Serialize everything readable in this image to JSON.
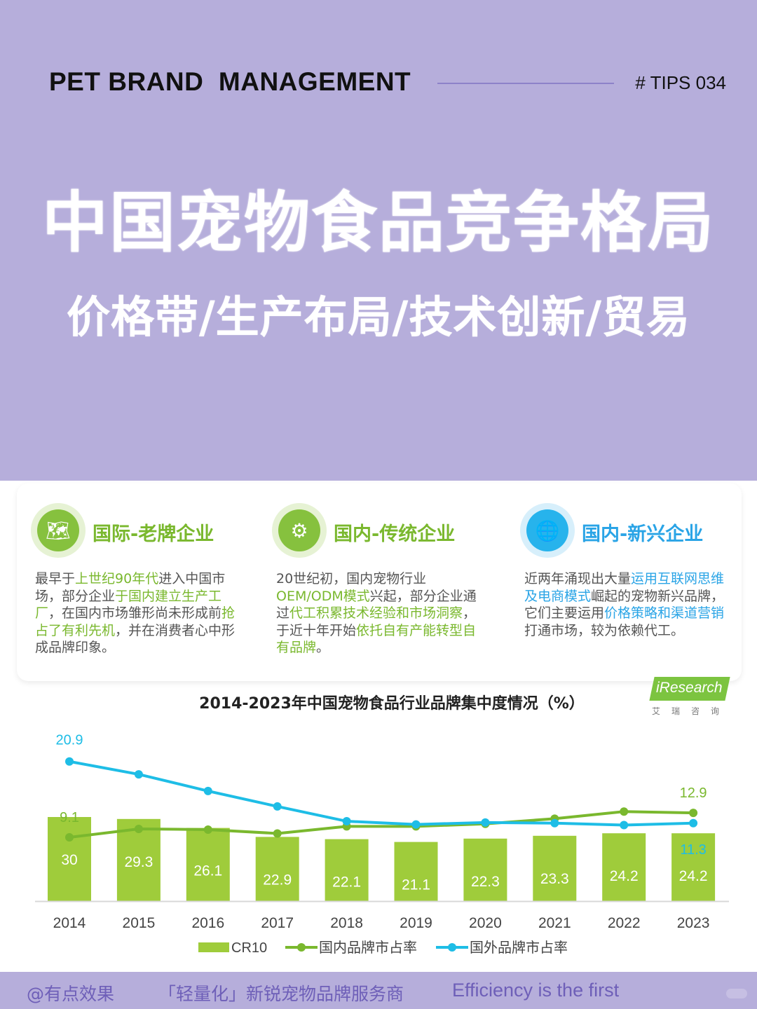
{
  "header": {
    "brand_line": "PET BRAND  MANAGEMENT",
    "tips": "# TIPS 034",
    "title": "中国宠物食品竞争格局",
    "subtitle": "价格带/生产布局/技术创新/贸易"
  },
  "categories": [
    {
      "icon": "world-map-icon",
      "heading": "国际-老牌企业",
      "color": "#7ab82e",
      "segments": [
        {
          "t": "最早于",
          "h": false
        },
        {
          "t": "上世纪90年代",
          "h": true
        },
        {
          "t": "进入中国市场，部分企业",
          "h": false
        },
        {
          "t": "于国内建立生产工厂",
          "h": true
        },
        {
          "t": "，在国内市场雏形尚未形成前",
          "h": false
        },
        {
          "t": "抢占了有利先机",
          "h": true
        },
        {
          "t": "，并在消费者心中形成品牌印象。",
          "h": false
        }
      ]
    },
    {
      "icon": "gear-icon",
      "heading": "国内-传统企业",
      "color": "#7ab82e",
      "segments": [
        {
          "t": "20世纪初，国内宠物行业",
          "h": false
        },
        {
          "t": "OEM/ODM模式",
          "h": true
        },
        {
          "t": "兴起，部分企业通过",
          "h": false
        },
        {
          "t": "代工积累技术经验和市场洞察",
          "h": true
        },
        {
          "t": "，于近十年开始",
          "h": false
        },
        {
          "t": "依托自有产能转型自有品牌",
          "h": true
        },
        {
          "t": "。",
          "h": false
        }
      ]
    },
    {
      "icon": "globe-icon",
      "heading": "国内-新兴企业",
      "color": "#2aa4e6",
      "segments": [
        {
          "t": "近两年涌现出大量",
          "h": false
        },
        {
          "t": "运用互联网思维及电商模式",
          "h": true
        },
        {
          "t": "崛起的宠物新兴品牌，它们主要运用",
          "h": false
        },
        {
          "t": "价格策略和渠道营销",
          "h": true
        },
        {
          "t": "打通市场，较为依赖代工。",
          "h": false
        }
      ]
    }
  ],
  "logo": {
    "name": "iResearch",
    "sub": "艾瑞咨询"
  },
  "chart_data": {
    "type": "bar",
    "title": "2014-2023年中国宠物食品行业品牌集中度情况（%）",
    "categories": [
      "2014",
      "2015",
      "2016",
      "2017",
      "2018",
      "2019",
      "2020",
      "2021",
      "2022",
      "2023"
    ],
    "series": [
      {
        "name": "CR10",
        "type": "bar",
        "color": "#9fcc3b",
        "values": [
          30,
          29.3,
          26.1,
          22.9,
          22.1,
          21.1,
          22.3,
          23.3,
          24.2,
          24.2
        ]
      },
      {
        "name": "国内品牌市占率",
        "type": "line",
        "color": "#7ab82e",
        "values": [
          9.1,
          10.4,
          10.3,
          9.7,
          10.8,
          10.8,
          11.2,
          12.0,
          13.1,
          12.9
        ]
      },
      {
        "name": "国外品牌市占率",
        "type": "line",
        "color": "#1ebde6",
        "values": [
          20.9,
          18.9,
          16.3,
          13.9,
          11.6,
          11.1,
          11.4,
          11.3,
          11.0,
          11.3
        ]
      }
    ],
    "line_labels": [
      {
        "series": 2,
        "index": 0,
        "text": "20.9"
      },
      {
        "series": 1,
        "index": 0,
        "text": "9.1"
      },
      {
        "series": 1,
        "index": 9,
        "text": "12.9"
      },
      {
        "series": 2,
        "index": 9,
        "text": "11.3"
      }
    ],
    "legend_position": "bottom",
    "grid": false
  },
  "footer": {
    "handle": "@有点效果",
    "slogan": "「轻量化」新锐宠物品牌服务商",
    "motto": "Efficiency is the first"
  }
}
